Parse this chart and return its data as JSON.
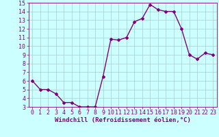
{
  "x": [
    0,
    1,
    2,
    3,
    4,
    5,
    6,
    7,
    8,
    9,
    10,
    11,
    12,
    13,
    14,
    15,
    16,
    17,
    18,
    19,
    20,
    21,
    22,
    23
  ],
  "y": [
    6.0,
    5.0,
    5.0,
    4.5,
    3.5,
    3.5,
    3.0,
    3.0,
    3.0,
    6.5,
    10.8,
    10.7,
    11.0,
    12.8,
    13.2,
    14.8,
    14.2,
    14.0,
    14.0,
    12.0,
    9.0,
    8.5,
    9.2,
    9.0
  ],
  "line_color": "#800080",
  "marker": "D",
  "marker_size": 2,
  "bg_color": "#ccffff",
  "grid_color": "#aacccc",
  "xlabel": "Windchill (Refroidissement éolien,°C)",
  "xlim": [
    -0.5,
    23.5
  ],
  "ylim": [
    3,
    15
  ],
  "yticks": [
    3,
    4,
    5,
    6,
    7,
    8,
    9,
    10,
    11,
    12,
    13,
    14,
    15
  ],
  "xticks": [
    0,
    1,
    2,
    3,
    4,
    5,
    6,
    7,
    8,
    9,
    10,
    11,
    12,
    13,
    14,
    15,
    16,
    17,
    18,
    19,
    20,
    21,
    22,
    23
  ],
  "tick_fontsize": 6,
  "xlabel_fontsize": 6.5,
  "line_width": 1.0
}
